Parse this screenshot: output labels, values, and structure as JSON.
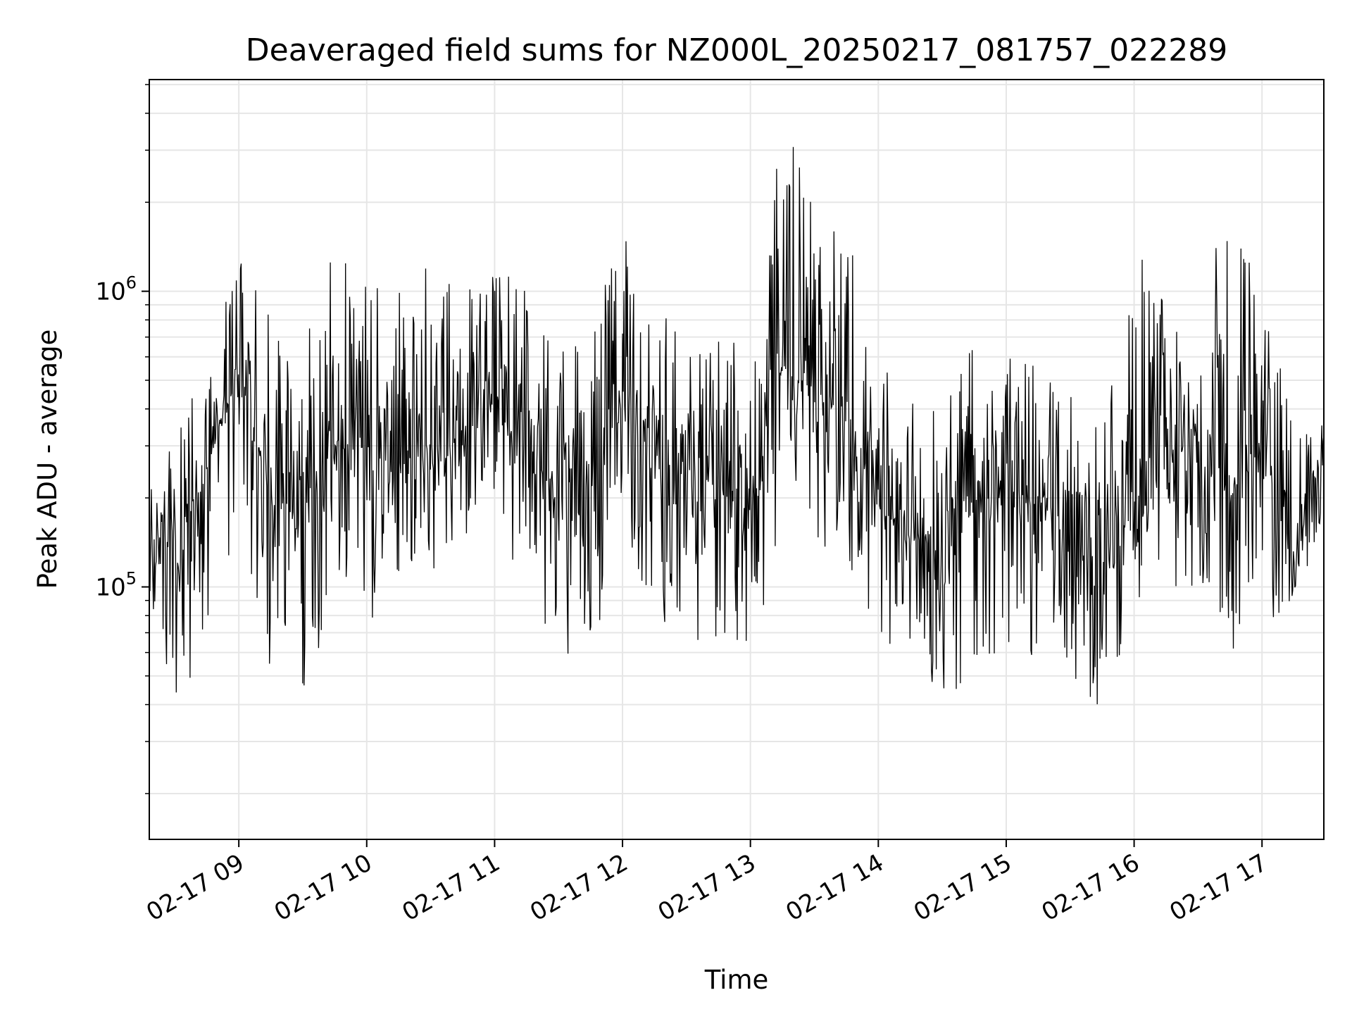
{
  "chart_data": {
    "type": "line",
    "title": "Deaveraged field sums for NZ000L_20250217_081757_022289",
    "xlabel": "Time",
    "ylabel": "Peak ADU - average",
    "y_scale": "log",
    "ylim": [
      14000,
      5200000
    ],
    "xlim": [
      "2025-02-17 08:18",
      "2025-02-17 17:29"
    ],
    "grid": true,
    "x_tick_labels": [
      "02-17 09",
      "02-17 10",
      "02-17 11",
      "02-17 12",
      "02-17 13",
      "02-17 14",
      "02-17 15",
      "02-17 16",
      "02-17 17"
    ],
    "x_tick_values": [
      "2025-02-17 09:00",
      "2025-02-17 10:00",
      "2025-02-17 11:00",
      "2025-02-17 12:00",
      "2025-02-17 13:00",
      "2025-02-17 14:00",
      "2025-02-17 15:00",
      "2025-02-17 16:00",
      "2025-02-17 17:00"
    ],
    "y_ticks": [
      {
        "value": 100000,
        "base": "10",
        "exp": "5"
      },
      {
        "value": 1000000,
        "base": "10",
        "exp": "6"
      }
    ],
    "series": [
      {
        "color": "#000000",
        "x": [
          "2025-02-17 08:18",
          "2025-02-17 08:30",
          "2025-02-17 08:45",
          "2025-02-17 09:00",
          "2025-02-17 09:15",
          "2025-02-17 09:30",
          "2025-02-17 09:45",
          "2025-02-17 10:00",
          "2025-02-17 10:15",
          "2025-02-17 10:30",
          "2025-02-17 10:45",
          "2025-02-17 11:00",
          "2025-02-17 11:15",
          "2025-02-17 11:30",
          "2025-02-17 11:45",
          "2025-02-17 12:00",
          "2025-02-17 12:15",
          "2025-02-17 12:30",
          "2025-02-17 12:45",
          "2025-02-17 13:00",
          "2025-02-17 13:15",
          "2025-02-17 13:30",
          "2025-02-17 13:45",
          "2025-02-17 14:00",
          "2025-02-17 14:15",
          "2025-02-17 14:30",
          "2025-02-17 14:45",
          "2025-02-17 15:00",
          "2025-02-17 15:15",
          "2025-02-17 15:30",
          "2025-02-17 15:45",
          "2025-02-17 16:00",
          "2025-02-17 16:15",
          "2025-02-17 16:30",
          "2025-02-17 16:45",
          "2025-02-17 17:00",
          "2025-02-17 17:15",
          "2025-02-17 17:29"
        ],
        "y": [
          150000,
          140000,
          250000,
          550000,
          200000,
          180000,
          300000,
          280000,
          260000,
          300000,
          320000,
          420000,
          300000,
          200000,
          250000,
          400000,
          280000,
          230000,
          220000,
          180000,
          550000,
          450000,
          350000,
          190000,
          150000,
          130000,
          200000,
          220000,
          180000,
          160000,
          120000,
          250000,
          300000,
          280000,
          200000,
          300000,
          120000,
          300000
        ],
        "y_low": [
          90000,
          40000,
          60000,
          180000,
          50000,
          45000,
          80000,
          70000,
          90000,
          100000,
          110000,
          140000,
          90000,
          55000,
          60000,
          120000,
          80000,
          65000,
          60000,
          50000,
          170000,
          130000,
          120000,
          60000,
          50000,
          40000,
          45000,
          60000,
          55000,
          45000,
          30000,
          90000,
          100000,
          85000,
          60000,
          80000,
          75000,
          180000
        ],
        "y_high": [
          300000,
          320000,
          600000,
          1700000,
          800000,
          700000,
          1500000,
          1100000,
          1000000,
          1300000,
          1200000,
          1300000,
          1000000,
          700000,
          850000,
          1700000,
          900000,
          700000,
          700000,
          650000,
          4000000,
          2300000,
          1700000,
          580000,
          450000,
          450000,
          700000,
          650000,
          550000,
          500000,
          350000,
          1500000,
          900000,
          1000000,
          2000000,
          1000000,
          400000,
          350000
        ]
      }
    ]
  }
}
